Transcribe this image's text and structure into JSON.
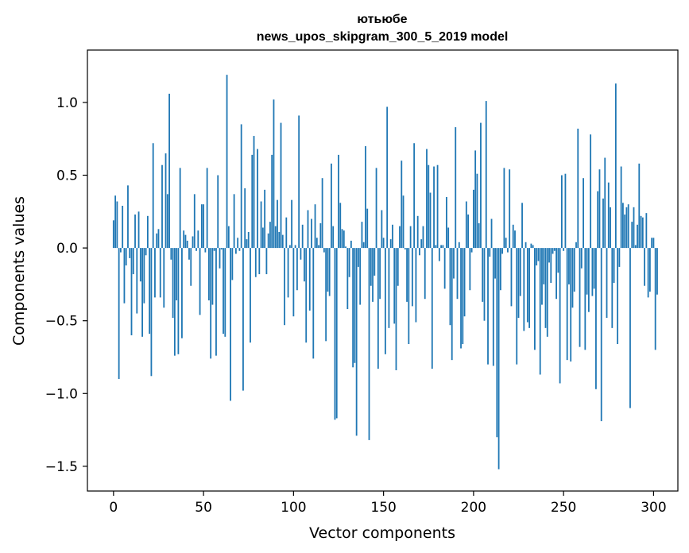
{
  "chart_data": {
    "type": "bar",
    "title": "ютьюбе",
    "subtitle": "news_upos_skipgram_300_5_2019 model",
    "xlabel": "Vector components",
    "ylabel": "Components values",
    "xlim": [
      -14.5,
      313.5
    ],
    "ylim": [
      -1.67,
      1.36
    ],
    "xticks": [
      0,
      50,
      100,
      150,
      200,
      250,
      300
    ],
    "xtick_labels": [
      "0",
      "50",
      "100",
      "150",
      "200",
      "250",
      "300"
    ],
    "yticks": [
      -1.5,
      -1.0,
      -0.5,
      0.0,
      0.5,
      1.0
    ],
    "ytick_labels": [
      "−1.5",
      "−1.0",
      "−0.5",
      "0.0",
      "0.5",
      "1.0"
    ],
    "grid": false,
    "bar_color": "#1f77b4",
    "x": "indices 0..299 (one bar per vector component)",
    "values": [
      0.19,
      0.36,
      0.32,
      -0.9,
      -0.03,
      0.29,
      -0.38,
      -0.12,
      0.43,
      -0.07,
      -0.6,
      -0.18,
      0.23,
      -0.45,
      0.25,
      -0.23,
      -0.61,
      -0.38,
      -0.05,
      0.22,
      -0.59,
      -0.88,
      0.72,
      -0.34,
      0.1,
      0.13,
      -0.34,
      0.57,
      -0.41,
      0.65,
      0.37,
      1.06,
      -0.08,
      -0.48,
      -0.74,
      -0.36,
      -0.73,
      0.55,
      -0.62,
      0.12,
      0.09,
      0.05,
      -0.08,
      -0.26,
      0.08,
      0.37,
      -0.02,
      0.12,
      -0.46,
      0.3,
      0.3,
      -0.03,
      0.55,
      -0.36,
      -0.76,
      -0.39,
      -0.02,
      -0.74,
      0.5,
      -0.14,
      -0.01,
      -0.59,
      -0.61,
      1.19,
      0.15,
      -1.05,
      -0.22,
      0.37,
      -0.04,
      0.07,
      -0.02,
      0.85,
      -0.98,
      0.41,
      0.06,
      0.11,
      -0.65,
      0.64,
      0.77,
      -0.2,
      0.68,
      -0.18,
      0.32,
      0.14,
      0.4,
      -0.18,
      0.1,
      0.18,
      0.64,
      1.02,
      0.15,
      0.33,
      0.11,
      0.86,
      0.09,
      -0.53,
      0.21,
      -0.34,
      0.02,
      0.33,
      -0.47,
      0.02,
      -0.29,
      0.91,
      -0.08,
      0.16,
      -0.23,
      -0.65,
      0.26,
      -0.43,
      0.2,
      -0.76,
      0.3,
      0.07,
      0.02,
      0.17,
      0.48,
      -0.03,
      -0.64,
      -0.3,
      -0.33,
      0.58,
      0.15,
      -1.18,
      -1.17,
      0.64,
      0.31,
      0.13,
      0.12,
      0.01,
      -0.42,
      -0.2,
      0.05,
      -0.82,
      -0.79,
      -1.29,
      -0.13,
      -0.39,
      0.18,
      0.04,
      0.7,
      0.27,
      -1.32,
      -0.26,
      -0.37,
      -0.19,
      0.55,
      -0.83,
      -0.35,
      0.26,
      0.07,
      -0.73,
      0.97,
      -0.55,
      0.06,
      0.16,
      -0.52,
      -0.84,
      -0.26,
      0.15,
      0.6,
      0.36,
      -0.01,
      -0.37,
      -0.66,
      0.15,
      -0.4,
      0.72,
      -0.51,
      0.22,
      -0.05,
      0.06,
      0.15,
      -0.35,
      0.68,
      0.57,
      0.38,
      -0.83,
      0.56,
      0.02,
      0.57,
      -0.09,
      0.02,
      0.02,
      -0.28,
      0.35,
      0.14,
      -0.53,
      -0.77,
      -0.21,
      0.83,
      -0.35,
      0.04,
      -0.69,
      -0.66,
      -0.47,
      0.32,
      0.23,
      -0.29,
      -0.03,
      0.4,
      0.67,
      0.51,
      0.17,
      0.86,
      -0.37,
      -0.5,
      1.01,
      -0.8,
      -0.06,
      0.2,
      -0.81,
      -0.21,
      -1.3,
      -1.52,
      -0.29,
      -0.04,
      0.55,
      0.07,
      -0.03,
      0.54,
      -0.4,
      0.16,
      0.12,
      -0.8,
      -0.48,
      -0.33,
      0.31,
      -0.57,
      0.04,
      -0.51,
      -0.55,
      0.03,
      0.02,
      -0.7,
      -0.12,
      -0.09,
      -0.87,
      -0.39,
      -0.25,
      -0.55,
      -0.61,
      -0.1,
      -0.24,
      -0.04,
      -0.02,
      -0.35,
      -0.17,
      -0.93,
      0.5,
      -0.02,
      0.51,
      -0.77,
      -0.25,
      -0.78,
      -0.41,
      -0.3,
      0.04,
      0.82,
      -0.68,
      -0.14,
      0.48,
      -0.7,
      -0.32,
      -0.44,
      0.78,
      -0.33,
      -0.28,
      -0.97,
      0.39,
      0.54,
      -1.19,
      0.34,
      0.62,
      -0.48,
      0.45,
      0.28,
      -0.55,
      -0.24,
      1.13,
      -0.66,
      -0.13,
      0.56,
      0.31,
      0.23,
      0.28,
      0.3,
      -1.1,
      0.18,
      0.28,
      0.02,
      0.16,
      0.58,
      0.22,
      0.21,
      -0.26,
      0.24,
      -0.34,
      -0.3,
      0.07,
      0.07,
      -0.7,
      -0.32
    ]
  }
}
